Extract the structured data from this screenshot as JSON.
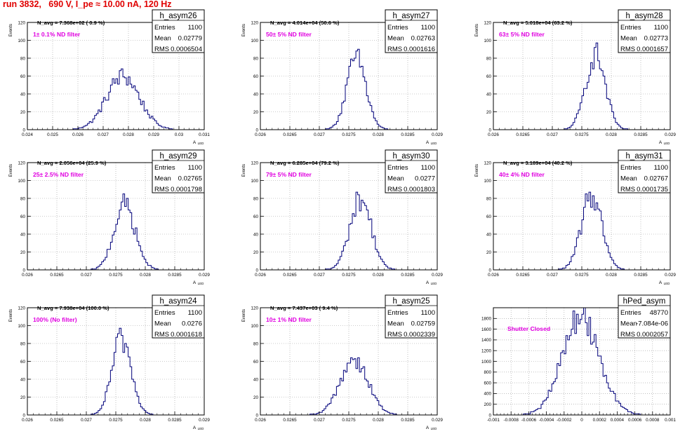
{
  "page_title": "run 3832,   690 V, I_pe ≈ 10.00 nA, 120 Hz",
  "colors": {
    "hist_line": "#00007a",
    "filter_text": "#e000e0",
    "title_text": "#e00000",
    "grid": "#999999",
    "axis": "#000000"
  },
  "chart_data": [
    {
      "type": "histogram",
      "name": "h_asym26",
      "stats": {
        "Entries": "1100",
        "Mean": "0.02779",
        "RMS": "0.0006504"
      },
      "navg": "N_avg = 7.368e+02 ( 0.9 %)",
      "filter": "1± 0.1% ND filter",
      "xlabel": "A_LED",
      "ylabel": "Events",
      "xlim": [
        0.024,
        0.031
      ],
      "ylim": [
        0,
        120
      ],
      "xticks": [
        0.024,
        0.025,
        0.026,
        0.027,
        0.028,
        0.029,
        0.03,
        0.031
      ],
      "xticklabels": [
        "0.024",
        "0.025",
        "0.026",
        "0.027",
        "0.028",
        "0.029",
        "0.03",
        "0.031"
      ],
      "yticks": [
        0,
        20,
        40,
        60,
        80,
        100,
        120
      ],
      "mean": 0.02779,
      "sigma": 0.00065,
      "peak": 60
    },
    {
      "type": "histogram",
      "name": "h_asym27",
      "stats": {
        "Entries": "1100",
        "Mean": "0.02763",
        "RMS": "0.0001616"
      },
      "navg": "N_avg = 4.014e+04 (50.6 %)",
      "filter": "50± 5% ND filter",
      "xlabel": "A_LED",
      "ylabel": "Events",
      "xlim": [
        0.026,
        0.029
      ],
      "ylim": [
        0,
        120
      ],
      "xticks": [
        0.026,
        0.0265,
        0.027,
        0.0275,
        0.028,
        0.0285,
        0.029
      ],
      "xticklabels": [
        "0.026",
        "0.0265",
        "0.027",
        "0.0275",
        "0.028",
        "0.0285",
        "0.029"
      ],
      "yticks": [
        0,
        20,
        40,
        60,
        80,
        100,
        120
      ],
      "mean": 0.02763,
      "sigma": 0.000162,
      "peak": 80
    },
    {
      "type": "histogram",
      "name": "h_asym28",
      "stats": {
        "Entries": "1100",
        "Mean": "0.02773",
        "RMS": "0.0001657"
      },
      "navg": "N_avg = 5.018e+04 (63.2 %)",
      "filter": "63± 5% ND filter",
      "xlabel": "A_LED",
      "ylabel": "Events",
      "xlim": [
        0.026,
        0.029
      ],
      "ylim": [
        0,
        120
      ],
      "xticks": [
        0.026,
        0.0265,
        0.027,
        0.0275,
        0.028,
        0.0285,
        0.029
      ],
      "xticklabels": [
        "0.026",
        "0.0265",
        "0.027",
        "0.0275",
        "0.028",
        "0.0285",
        "0.029"
      ],
      "yticks": [
        0,
        20,
        40,
        60,
        80,
        100,
        120
      ],
      "mean": 0.02773,
      "sigma": 0.000166,
      "peak": 84
    },
    {
      "type": "histogram",
      "name": "h_asym29",
      "stats": {
        "Entries": "1100",
        "Mean": "0.02765",
        "RMS": "0.0001798"
      },
      "navg": "N_avg = 2.056e+04 (25.9 %)",
      "filter": "25± 2.5% ND filter",
      "xlabel": "A_LED",
      "ylabel": "Events",
      "xlim": [
        0.026,
        0.029
      ],
      "ylim": [
        0,
        120
      ],
      "xticks": [
        0.026,
        0.0265,
        0.027,
        0.0275,
        0.028,
        0.0285,
        0.029
      ],
      "xticklabels": [
        "0.026",
        "0.0265",
        "0.027",
        "0.0275",
        "0.028",
        "0.0285",
        "0.029"
      ],
      "yticks": [
        0,
        20,
        40,
        60,
        80,
        100,
        120
      ],
      "mean": 0.02765,
      "sigma": 0.00018,
      "peak": 73
    },
    {
      "type": "histogram",
      "name": "h_asym30",
      "stats": {
        "Entries": "1100",
        "Mean": "0.0277",
        "RMS": "0.0001803"
      },
      "navg": "N_avg = 6.285e+04 (79.2 %)",
      "filter": "79± 5% ND filter",
      "xlabel": "A_LED",
      "ylabel": "Events",
      "xlim": [
        0.026,
        0.029
      ],
      "ylim": [
        0,
        120
      ],
      "xticks": [
        0.026,
        0.0265,
        0.027,
        0.0275,
        0.028,
        0.0285,
        0.029
      ],
      "xticklabels": [
        "0.026",
        "0.0265",
        "0.027",
        "0.0275",
        "0.028",
        "0.0285",
        "0.029"
      ],
      "yticks": [
        0,
        20,
        40,
        60,
        80,
        100,
        120
      ],
      "mean": 0.0277,
      "sigma": 0.00018,
      "peak": 80
    },
    {
      "type": "histogram",
      "name": "h_asym31",
      "stats": {
        "Entries": "1100",
        "Mean": "0.02767",
        "RMS": "0.0001735"
      },
      "navg": "N_avg = 3.189e+04 (40.2 %)",
      "filter": "40± 4% ND filter",
      "xlabel": "A_LED",
      "ylabel": "Events",
      "xlim": [
        0.026,
        0.029
      ],
      "ylim": [
        0,
        120
      ],
      "xticks": [
        0.026,
        0.0265,
        0.027,
        0.0275,
        0.028,
        0.0285,
        0.029
      ],
      "xticklabels": [
        "0.026",
        "0.0265",
        "0.027",
        "0.0275",
        "0.028",
        "0.0285",
        "0.029"
      ],
      "yticks": [
        0,
        20,
        40,
        60,
        80,
        100,
        120
      ],
      "mean": 0.02767,
      "sigma": 0.000174,
      "peak": 84
    },
    {
      "type": "histogram",
      "name": "h_asym24",
      "stats": {
        "Entries": "1100",
        "Mean": "0.0276",
        "RMS": "0.0001618"
      },
      "navg": "N_avg = 7.938e+04 (100.0 %)",
      "filter": "100% (No filter)",
      "xlabel": "A_LED",
      "ylabel": "Events",
      "xlim": [
        0.026,
        0.029
      ],
      "ylim": [
        0,
        120
      ],
      "xticks": [
        0.026,
        0.0265,
        0.027,
        0.0275,
        0.028,
        0.0285,
        0.029
      ],
      "xticklabels": [
        "0.026",
        "0.0265",
        "0.027",
        "0.0275",
        "0.028",
        "0.0285",
        "0.029"
      ],
      "yticks": [
        0,
        20,
        40,
        60,
        80,
        100,
        120
      ],
      "mean": 0.0276,
      "sigma": 0.000162,
      "peak": 86
    },
    {
      "type": "histogram",
      "name": "h_asym25",
      "stats": {
        "Entries": "1100",
        "Mean": "0.02759",
        "RMS": "0.0002339"
      },
      "navg": "N_avg = 7.437e+03 ( 9.4 %)",
      "filter": "10± 1% ND filter",
      "xlabel": "A_LED",
      "ylabel": "Events",
      "xlim": [
        0.026,
        0.029
      ],
      "ylim": [
        0,
        120
      ],
      "xticks": [
        0.026,
        0.0265,
        0.027,
        0.0275,
        0.028,
        0.0285,
        0.029
      ],
      "xticklabels": [
        "0.026",
        "0.0265",
        "0.027",
        "0.0275",
        "0.028",
        "0.0285",
        "0.029"
      ],
      "yticks": [
        0,
        20,
        40,
        60,
        80,
        100,
        120
      ],
      "mean": 0.02759,
      "sigma": 0.000234,
      "peak": 63
    },
    {
      "type": "histogram",
      "name": "hPed_asym",
      "stats": {
        "Entries": "48770",
        "Mean": "-7.084e-06",
        "RMS": "0.0002057"
      },
      "navg": "",
      "filter": "Shutter Closed",
      "xlabel": "",
      "ylabel": "",
      "xlim": [
        -0.001,
        0.001
      ],
      "ylim": [
        0,
        2000
      ],
      "xticks": [
        -0.001,
        -0.0008,
        -0.0006,
        -0.0004,
        -0.0002,
        0,
        0.0002,
        0.0004,
        0.0006,
        0.0008,
        0.001
      ],
      "xticklabels": [
        "-0.001",
        "-0.0008",
        "-0.0006",
        "-0.0004",
        "-0.0002",
        "0",
        "0.0002",
        "0.0004",
        "0.0006",
        "0.0008",
        "0.001"
      ],
      "yticks": [
        0,
        200,
        400,
        600,
        800,
        1000,
        1200,
        1400,
        1600,
        1800
      ],
      "mean": -7.084e-06,
      "sigma": 0.000206,
      "peak": 1880
    }
  ]
}
